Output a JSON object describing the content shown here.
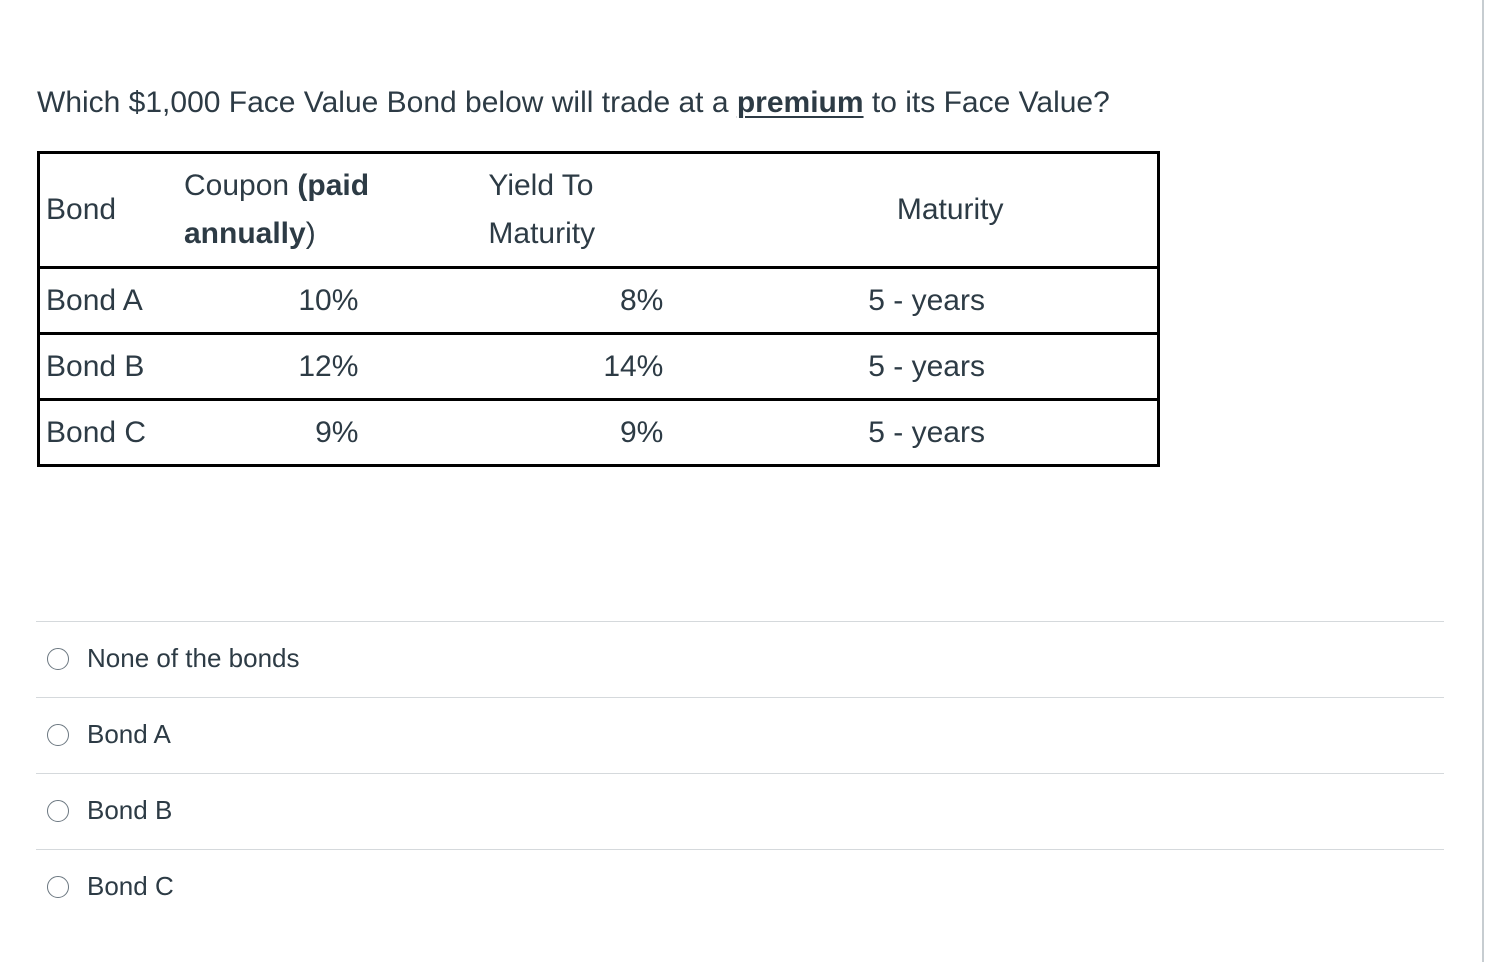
{
  "question": {
    "before": "Which $1,000 Face Value Bond below will trade at a ",
    "emphasis": "premium",
    "after": " to its Face Value?"
  },
  "table": {
    "headers": {
      "bond": "Bond",
      "coupon_line1_plain": "Coupon ",
      "coupon_line1_bold": "(paid",
      "coupon_line2_bold": "annually",
      "coupon_line2_plain": ")",
      "ytm_line1": "Yield To",
      "ytm_line2": "Maturity",
      "maturity": "Maturity"
    },
    "rows": [
      {
        "bond": "Bond A",
        "coupon": "10%",
        "ytm": "8%",
        "maturity": "5 - years"
      },
      {
        "bond": "Bond B",
        "coupon": "12%",
        "ytm": "14%",
        "maturity": "5 - years"
      },
      {
        "bond": "Bond C",
        "coupon": "9%",
        "ytm": "9%",
        "maturity": "5 - years"
      }
    ]
  },
  "answers": [
    {
      "label": "None of the bonds"
    },
    {
      "label": "Bond A"
    },
    {
      "label": "Bond B"
    },
    {
      "label": "Bond C"
    }
  ]
}
